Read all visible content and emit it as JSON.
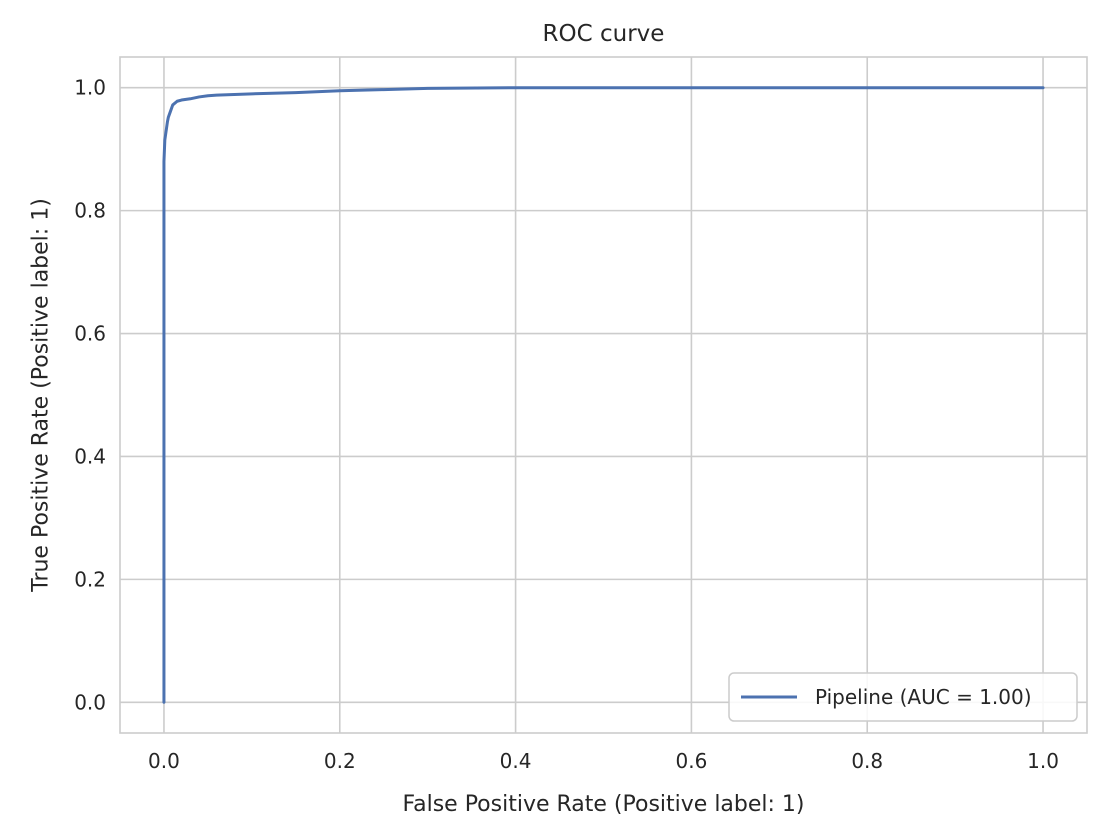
{
  "chart_data": {
    "type": "line",
    "title": "ROC curve",
    "xlabel": "False Positive Rate (Positive label: 1)",
    "ylabel": "True Positive Rate (Positive label: 1)",
    "xlim": [
      -0.05,
      1.05
    ],
    "ylim": [
      -0.05,
      1.05
    ],
    "xticks": [
      "0.0",
      "0.2",
      "0.4",
      "0.6",
      "0.8",
      "1.0"
    ],
    "yticks": [
      "0.0",
      "0.2",
      "0.4",
      "0.6",
      "0.8",
      "1.0"
    ],
    "grid": true,
    "legend_position": "lower-right",
    "series": [
      {
        "name": "Pipeline (AUC = 1.00)",
        "color": "#4c72b0",
        "x": [
          0,
          0,
          0.001,
          0.002,
          0.003,
          0.004,
          0.005,
          0.007,
          0.01,
          0.015,
          0.02,
          0.025,
          0.03,
          0.04,
          0.05,
          0.06,
          0.08,
          0.1,
          0.15,
          0.2,
          0.25,
          0.3,
          0.4,
          0.6,
          0.8,
          1.0
        ],
        "y": [
          0,
          0.88,
          0.915,
          0.925,
          0.935,
          0.945,
          0.952,
          0.96,
          0.972,
          0.978,
          0.98,
          0.981,
          0.982,
          0.985,
          0.987,
          0.988,
          0.989,
          0.99,
          0.992,
          0.995,
          0.997,
          0.999,
          1.0,
          1.0,
          1.0,
          1.0
        ]
      }
    ]
  }
}
